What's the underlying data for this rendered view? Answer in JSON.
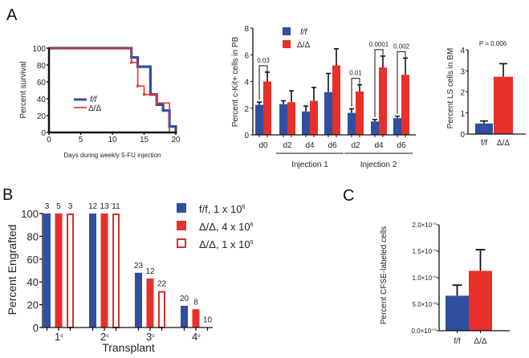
{
  "colors": {
    "ff": "#2f4fa0",
    "dd": "#e8302a",
    "dd_outline": "#d9302a",
    "axis": "#111111",
    "purple": "#8a4a80"
  },
  "panels": {
    "A": "A",
    "B": "B",
    "C": "C"
  },
  "chart_data": [
    {
      "id": "survival",
      "type": "line",
      "title": "",
      "xlabel": "Days during weekly 5-FU injection",
      "ylabel": "Percent survival",
      "xlim": [
        0,
        20
      ],
      "ylim": [
        0,
        100
      ],
      "xticks": [
        "0",
        "5",
        "10",
        "15",
        "20"
      ],
      "yticks": [
        "0",
        "20",
        "40",
        "60",
        "80",
        "100"
      ],
      "legend": [
        "f/f",
        "Δ/Δ"
      ],
      "legend_position": "center-left",
      "series": [
        {
          "name": "f/f",
          "x": [
            0,
            13,
            14,
            16,
            17,
            18,
            19,
            20
          ],
          "y": [
            100,
            89,
            78,
            45,
            33,
            26,
            7,
            0
          ]
        },
        {
          "name": "Δ/Δ",
          "x": [
            0,
            13,
            14,
            15,
            16,
            17,
            19
          ],
          "y": [
            100,
            83,
            55,
            45,
            45,
            35,
            0
          ]
        }
      ]
    },
    {
      "id": "ckit",
      "type": "bar",
      "xlabel": "",
      "ylabel": "Percent c-Kit+ cells in PB",
      "ylim": [
        0,
        8
      ],
      "yticks": [
        "0",
        "2",
        "4",
        "6",
        "8"
      ],
      "categories": [
        "d0",
        "d2",
        "d4",
        "d6",
        "d2",
        "d4",
        "d6"
      ],
      "groups": [
        {
          "label": "Injection 1",
          "span": [
            1,
            3
          ]
        },
        {
          "label": "Injection 2",
          "span": [
            4,
            6
          ]
        }
      ],
      "legend": [
        "f/f",
        "Δ/Δ"
      ],
      "legend_position": "top-left",
      "series": [
        {
          "name": "f/f",
          "values": [
            2.25,
            2.3,
            1.75,
            3.2,
            1.65,
            1.0,
            1.25
          ],
          "errors": [
            0.2,
            0.25,
            0.4,
            1.4,
            0.3,
            0.15,
            0.15
          ]
        },
        {
          "name": "Δ/Δ",
          "values": [
            4.0,
            2.45,
            2.55,
            5.2,
            3.25,
            5.05,
            4.5
          ],
          "errors": [
            0.7,
            0.85,
            1.0,
            1.25,
            0.5,
            0.85,
            1.25
          ]
        }
      ],
      "annotations": [
        {
          "category_index": 0,
          "p": "0.03"
        },
        {
          "category_index": 4,
          "p": "0.01"
        },
        {
          "category_index": 5,
          "p": "0.0001"
        },
        {
          "category_index": 6,
          "p": "0.002"
        }
      ]
    },
    {
      "id": "ls",
      "type": "bar",
      "ylabel": "Percent LS cells in BM",
      "ylim": [
        0,
        4
      ],
      "yticks": [
        "0",
        "1",
        "2",
        "3",
        "4"
      ],
      "categories": [
        "f/f",
        "Δ/Δ"
      ],
      "values": [
        0.5,
        2.72
      ],
      "errors": [
        0.12,
        0.62
      ],
      "annotation": "P = 0.006"
    },
    {
      "id": "engraft",
      "type": "bar",
      "xlabel": "Transplant",
      "ylabel": "Percent Engrafted",
      "ylim": [
        0,
        100
      ],
      "yticks": [
        "0",
        "20",
        "40",
        "60",
        "80",
        "100"
      ],
      "categories": [
        "1o",
        "2o",
        "3o",
        "4o"
      ],
      "category_main": [
        "1",
        "2",
        "3",
        "4"
      ],
      "category_sup": [
        "o",
        "o",
        "o",
        "o"
      ],
      "legend_position": "right",
      "series": [
        {
          "name": "f/f, 1 x 10^6",
          "legend_main": "f/f,  1 x 10",
          "legend_sup": "6",
          "style": "solid-blue",
          "values": [
            100,
            100,
            48,
            19
          ],
          "n": [
            "3",
            "12",
            "23",
            "20"
          ]
        },
        {
          "name": "Δ/Δ, 4 x 10^6",
          "legend_main": "Δ/Δ, 4 x 10",
          "legend_sup": "6",
          "style": "solid-red",
          "values": [
            100,
            100,
            43,
            16
          ],
          "n": [
            "5",
            "13",
            "12",
            "8"
          ]
        },
        {
          "name": "Δ/Δ, 1 x 10^6",
          "legend_main": "Δ/Δ, 1 x 10",
          "legend_sup": "6",
          "style": "open-red",
          "values": [
            100,
            100,
            32,
            0.5
          ],
          "n": [
            "3",
            "11",
            "22",
            "10"
          ]
        }
      ]
    },
    {
      "id": "cfse",
      "type": "bar",
      "ylabel": "Percent CFSE-labeled cells",
      "ylim": [
        0,
        0.0002
      ],
      "yticks_main": [
        "0.0×10",
        "5.0×10",
        "1.0×10",
        "1.5×10",
        "2.0×10"
      ],
      "yticks_sup": [
        "+00",
        "-05",
        "-04",
        "-04",
        "-04"
      ],
      "categories": [
        "f/f",
        "Δ/Δ"
      ],
      "values": [
        6.6e-05,
        0.000113
      ],
      "errors": [
        2e-05,
        4e-05
      ]
    }
  ]
}
